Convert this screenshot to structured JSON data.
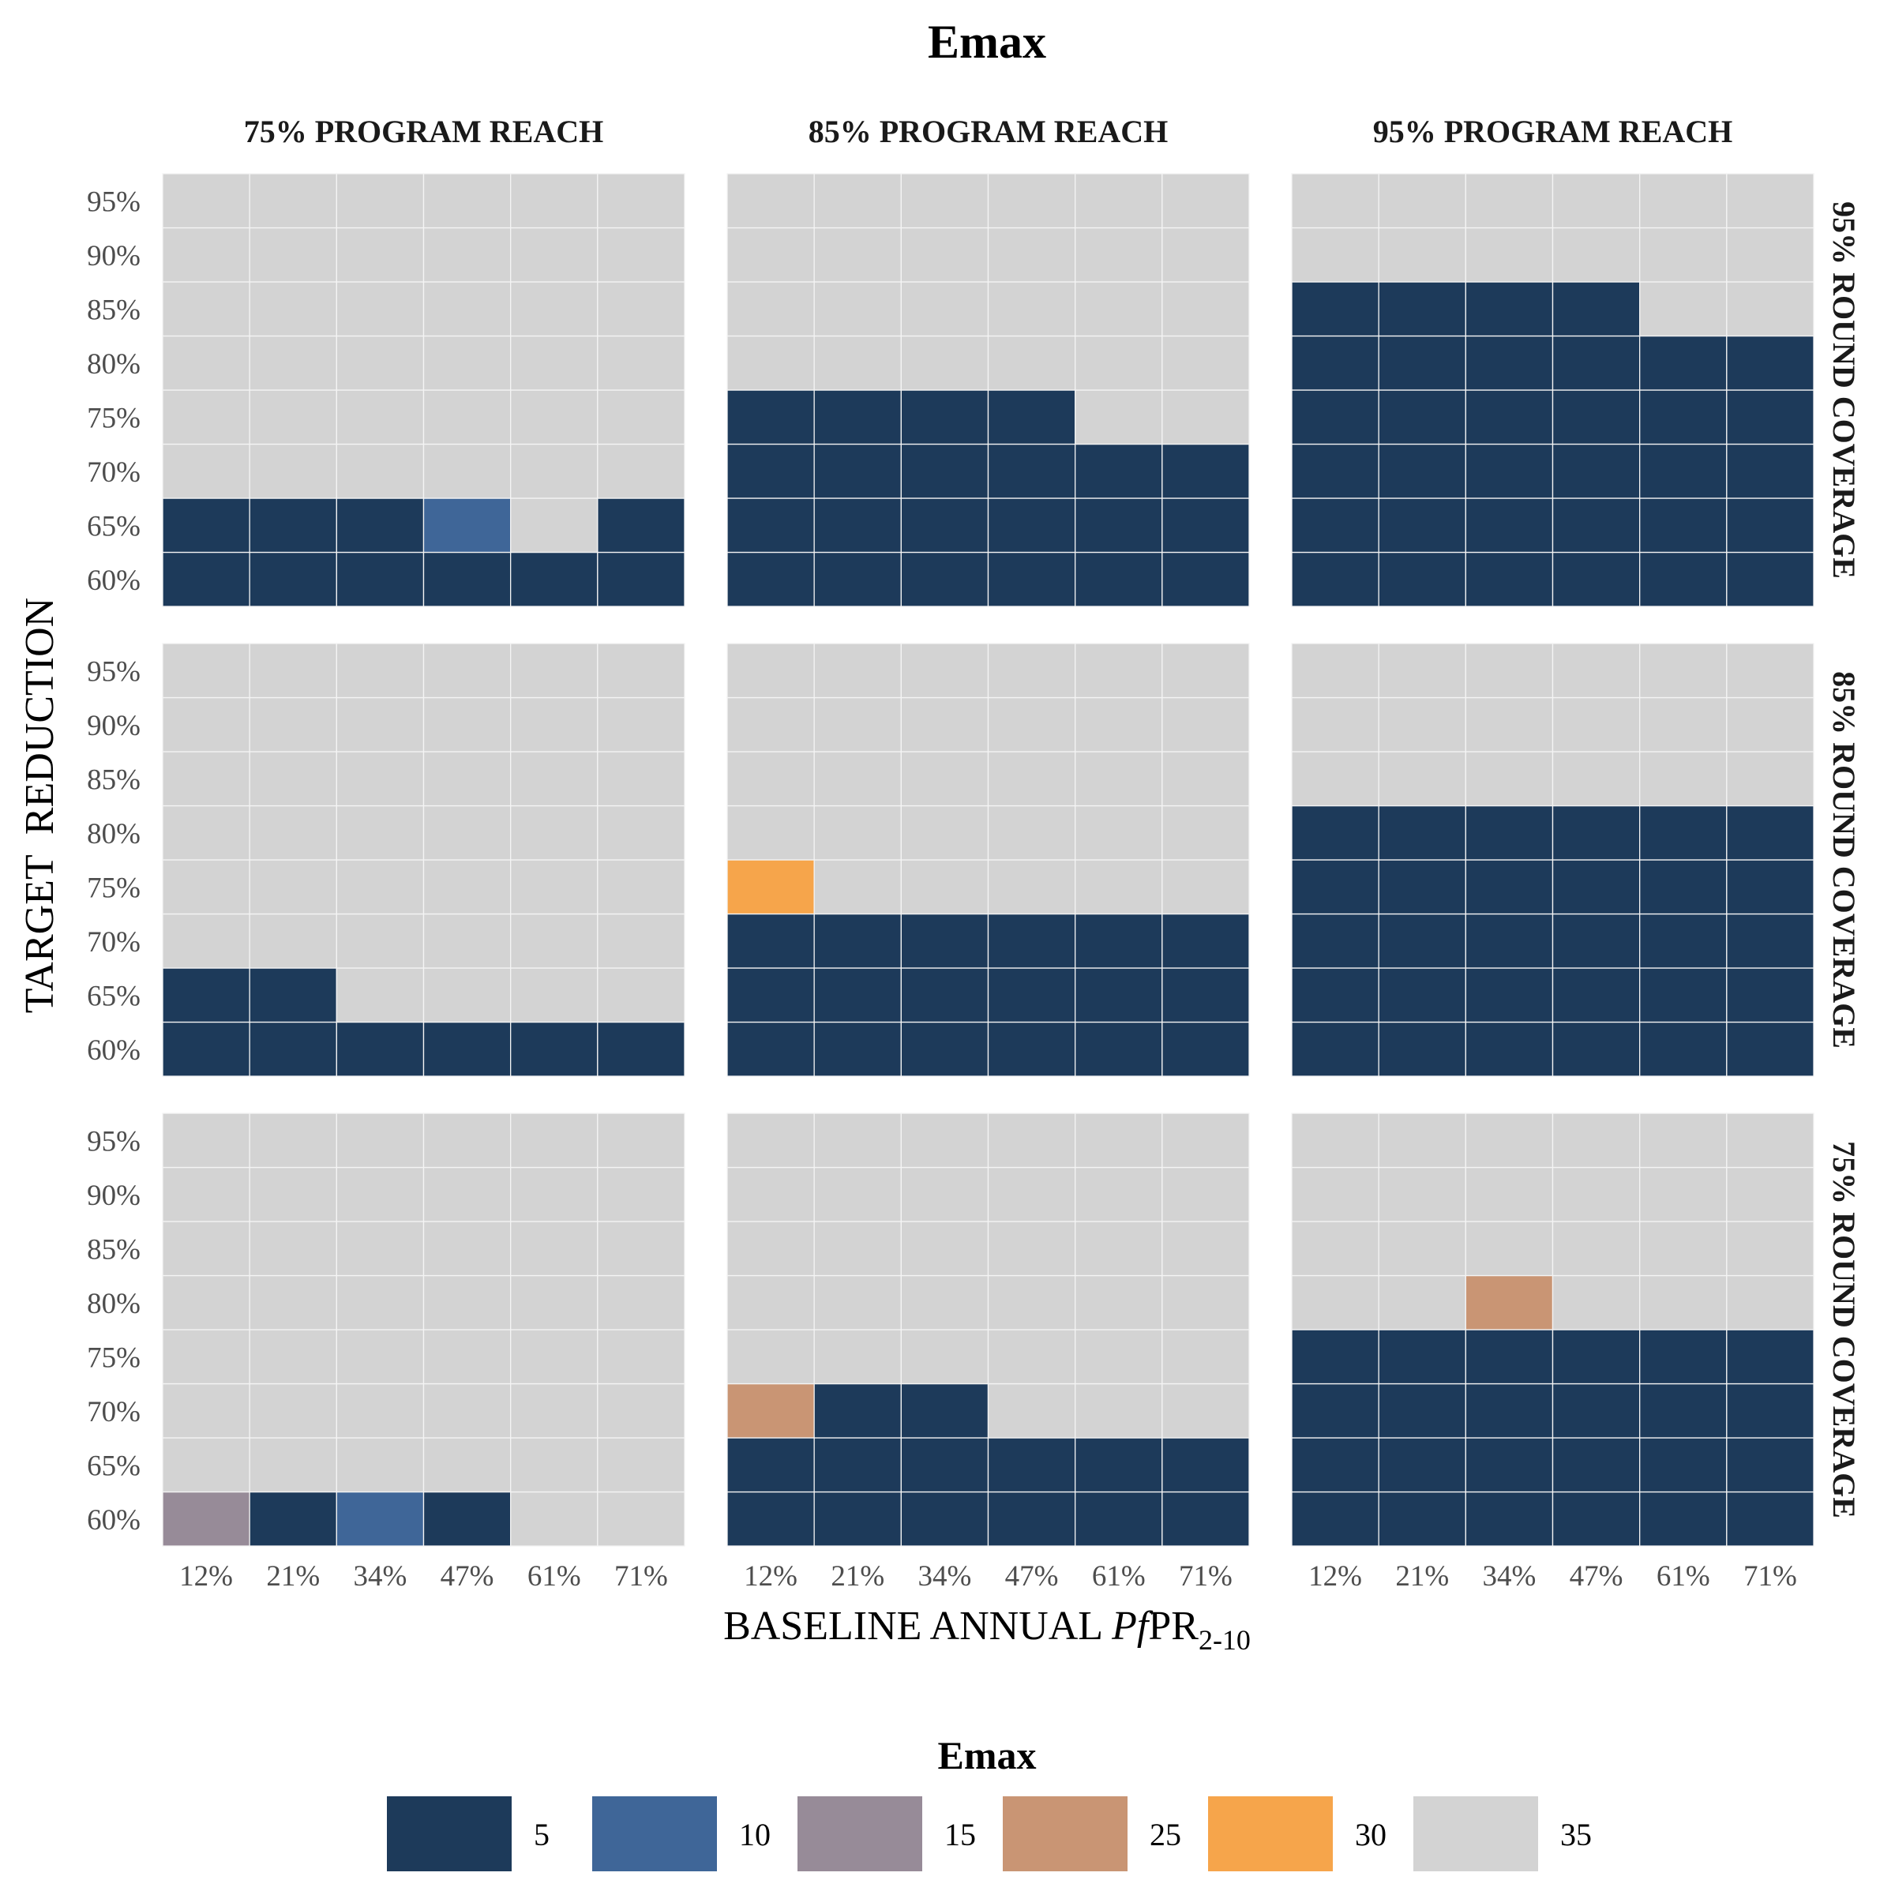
{
  "chart_data": {
    "type": "heatmap",
    "title": "Emax",
    "xlabel": "BASELINE ANNUAL PfPR2-10",
    "xlabel_parts": {
      "pre": "BASELINE ANNUAL ",
      "italic": "Pf",
      "main": "PR",
      "sub": "2-10"
    },
    "ylabel": "TARGET  REDUCTION",
    "x_categories": [
      "12%",
      "21%",
      "34%",
      "47%",
      "61%",
      "71%"
    ],
    "y_categories": [
      "60%",
      "65%",
      "70%",
      "75%",
      "80%",
      "85%",
      "90%",
      "95%"
    ],
    "columns": [
      "75% PROGRAM REACH",
      "85% PROGRAM REACH",
      "95% PROGRAM REACH"
    ],
    "rows": [
      "95% ROUND COVERAGE",
      "85% ROUND COVERAGE",
      "75% ROUND COVERAGE"
    ],
    "legend": {
      "title": "Emax",
      "position": "bottom",
      "entries": [
        {
          "label": "5",
          "value": 5,
          "color": "#1d3a5a"
        },
        {
          "label": "10",
          "value": 10,
          "color": "#3f6698"
        },
        {
          "label": "15",
          "value": 15,
          "color": "#978b98"
        },
        {
          "label": "25",
          "value": 25,
          "color": "#c99574"
        },
        {
          "label": "30",
          "value": 30,
          "color": "#f6a54b"
        },
        {
          "label": "35",
          "value": 35,
          "color": "#d3d3d3"
        }
      ]
    },
    "note": "values[y][x]; y index 0 = 60% ... 7 = 95%; x index 0 = 12% ... 5 = 71%",
    "panels": [
      {
        "row": "95% ROUND COVERAGE",
        "column": "75% PROGRAM REACH",
        "values": [
          [
            5,
            5,
            5,
            5,
            5,
            5
          ],
          [
            5,
            5,
            5,
            10,
            35,
            5
          ],
          [
            35,
            35,
            35,
            35,
            35,
            35
          ],
          [
            35,
            35,
            35,
            35,
            35,
            35
          ],
          [
            35,
            35,
            35,
            35,
            35,
            35
          ],
          [
            35,
            35,
            35,
            35,
            35,
            35
          ],
          [
            35,
            35,
            35,
            35,
            35,
            35
          ],
          [
            35,
            35,
            35,
            35,
            35,
            35
          ]
        ]
      },
      {
        "row": "95% ROUND COVERAGE",
        "column": "85% PROGRAM REACH",
        "values": [
          [
            5,
            5,
            5,
            5,
            5,
            5
          ],
          [
            5,
            5,
            5,
            5,
            5,
            5
          ],
          [
            5,
            5,
            5,
            5,
            5,
            5
          ],
          [
            5,
            5,
            5,
            5,
            35,
            35
          ],
          [
            35,
            35,
            35,
            35,
            35,
            35
          ],
          [
            35,
            35,
            35,
            35,
            35,
            35
          ],
          [
            35,
            35,
            35,
            35,
            35,
            35
          ],
          [
            35,
            35,
            35,
            35,
            35,
            35
          ]
        ]
      },
      {
        "row": "95% ROUND COVERAGE",
        "column": "95% PROGRAM REACH",
        "values": [
          [
            5,
            5,
            5,
            5,
            5,
            5
          ],
          [
            5,
            5,
            5,
            5,
            5,
            5
          ],
          [
            5,
            5,
            5,
            5,
            5,
            5
          ],
          [
            5,
            5,
            5,
            5,
            5,
            5
          ],
          [
            5,
            5,
            5,
            5,
            5,
            5
          ],
          [
            5,
            5,
            5,
            5,
            35,
            35
          ],
          [
            35,
            35,
            35,
            35,
            35,
            35
          ],
          [
            35,
            35,
            35,
            35,
            35,
            35
          ]
        ]
      },
      {
        "row": "85% ROUND COVERAGE",
        "column": "75% PROGRAM REACH",
        "values": [
          [
            5,
            5,
            5,
            5,
            5,
            5
          ],
          [
            5,
            5,
            35,
            35,
            35,
            35
          ],
          [
            35,
            35,
            35,
            35,
            35,
            35
          ],
          [
            35,
            35,
            35,
            35,
            35,
            35
          ],
          [
            35,
            35,
            35,
            35,
            35,
            35
          ],
          [
            35,
            35,
            35,
            35,
            35,
            35
          ],
          [
            35,
            35,
            35,
            35,
            35,
            35
          ],
          [
            35,
            35,
            35,
            35,
            35,
            35
          ]
        ]
      },
      {
        "row": "85% ROUND COVERAGE",
        "column": "85% PROGRAM REACH",
        "values": [
          [
            5,
            5,
            5,
            5,
            5,
            5
          ],
          [
            5,
            5,
            5,
            5,
            5,
            5
          ],
          [
            5,
            5,
            5,
            5,
            5,
            5
          ],
          [
            30,
            35,
            35,
            35,
            35,
            35
          ],
          [
            35,
            35,
            35,
            35,
            35,
            35
          ],
          [
            35,
            35,
            35,
            35,
            35,
            35
          ],
          [
            35,
            35,
            35,
            35,
            35,
            35
          ],
          [
            35,
            35,
            35,
            35,
            35,
            35
          ]
        ]
      },
      {
        "row": "85% ROUND COVERAGE",
        "column": "95% PROGRAM REACH",
        "values": [
          [
            5,
            5,
            5,
            5,
            5,
            5
          ],
          [
            5,
            5,
            5,
            5,
            5,
            5
          ],
          [
            5,
            5,
            5,
            5,
            5,
            5
          ],
          [
            5,
            5,
            5,
            5,
            5,
            5
          ],
          [
            5,
            5,
            5,
            5,
            5,
            5
          ],
          [
            35,
            35,
            35,
            35,
            35,
            35
          ],
          [
            35,
            35,
            35,
            35,
            35,
            35
          ],
          [
            35,
            35,
            35,
            35,
            35,
            35
          ]
        ]
      },
      {
        "row": "75% ROUND COVERAGE",
        "column": "75% PROGRAM REACH",
        "values": [
          [
            15,
            5,
            10,
            5,
            35,
            35
          ],
          [
            35,
            35,
            35,
            35,
            35,
            35
          ],
          [
            35,
            35,
            35,
            35,
            35,
            35
          ],
          [
            35,
            35,
            35,
            35,
            35,
            35
          ],
          [
            35,
            35,
            35,
            35,
            35,
            35
          ],
          [
            35,
            35,
            35,
            35,
            35,
            35
          ],
          [
            35,
            35,
            35,
            35,
            35,
            35
          ],
          [
            35,
            35,
            35,
            35,
            35,
            35
          ]
        ]
      },
      {
        "row": "75% ROUND COVERAGE",
        "column": "85% PROGRAM REACH",
        "values": [
          [
            5,
            5,
            5,
            5,
            5,
            5
          ],
          [
            5,
            5,
            5,
            5,
            5,
            5
          ],
          [
            25,
            5,
            5,
            35,
            35,
            35
          ],
          [
            35,
            35,
            35,
            35,
            35,
            35
          ],
          [
            35,
            35,
            35,
            35,
            35,
            35
          ],
          [
            35,
            35,
            35,
            35,
            35,
            35
          ],
          [
            35,
            35,
            35,
            35,
            35,
            35
          ],
          [
            35,
            35,
            35,
            35,
            35,
            35
          ]
        ]
      },
      {
        "row": "75% ROUND COVERAGE",
        "column": "95% PROGRAM REACH",
        "values": [
          [
            5,
            5,
            5,
            5,
            5,
            5
          ],
          [
            5,
            5,
            5,
            5,
            5,
            5
          ],
          [
            5,
            5,
            5,
            5,
            5,
            5
          ],
          [
            5,
            5,
            5,
            5,
            5,
            5
          ],
          [
            35,
            35,
            25,
            35,
            35,
            35
          ],
          [
            35,
            35,
            35,
            35,
            35,
            35
          ],
          [
            35,
            35,
            35,
            35,
            35,
            35
          ],
          [
            35,
            35,
            35,
            35,
            35,
            35
          ]
        ]
      }
    ]
  }
}
